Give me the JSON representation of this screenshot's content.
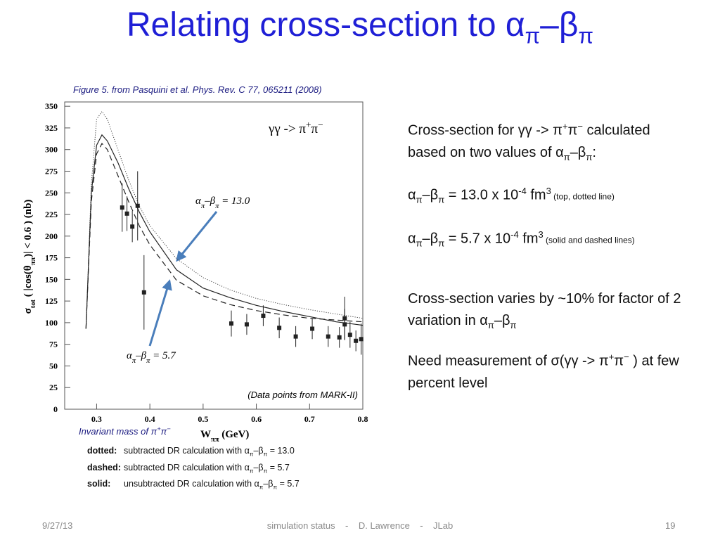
{
  "slide": {
    "title": [
      "Relating cross-section to α",
      "π",
      "–β",
      "π"
    ],
    "figure_caption": "Figure 5. from Pasquini et al. Phys. Rev. C 77, 065211 (2008)",
    "right_text": [
      [
        "Cross-section for γγ -> π",
        "+",
        "π",
        "−",
        " calculated based on two values of α",
        "π",
        "–β",
        "π",
        ":"
      ],
      [
        "α",
        "π",
        "–β",
        "π",
        " = 13.0 x 10",
        "-4",
        " fm",
        "3",
        " (top, dotted line)"
      ],
      [
        "α",
        "π",
        "–β",
        "π",
        " = 5.7 x 10",
        "-4",
        " fm",
        "3",
        " (solid and dashed lines)"
      ],
      [
        "Cross-section varies by ~10% for factor of 2 variation in α",
        "π",
        "–β",
        "π"
      ],
      [
        "Need measurement of σ(γγ -> π",
        "+",
        "π",
        "−",
        " ) at few percent level"
      ]
    ],
    "legend": [
      {
        "key": "dotted:",
        "text": [
          "subtracted DR calculation with α",
          "π",
          "–β",
          "π",
          " = 13.0"
        ]
      },
      {
        "key": "dashed:",
        "text": [
          "subtracted DR calculation with α",
          "π",
          "–β",
          "π",
          " = 5.7"
        ]
      },
      {
        "key": "solid:",
        "text": [
          "unsubtracted DR calculation with α",
          "π",
          "–β",
          "π",
          " = 5.7"
        ]
      }
    ],
    "footer": {
      "date": "9/27/13",
      "center": "simulation status    -    D. Lawrence    -    JLab",
      "page": "19"
    }
  },
  "chart_data": {
    "type": "scatter",
    "x_label": [
      "W",
      "ππ",
      "   (GeV)"
    ],
    "y_label": [
      "σ",
      "tot",
      "  ( |cos(θ",
      "ππ",
      ")| < 0.6 )   (nb)"
    ],
    "x_caption": [
      "Invariant mass of π",
      "+",
      "π",
      "−"
    ],
    "annotations": {
      "process": [
        "γγ -> π",
        "+",
        "π",
        "−"
      ],
      "upper": [
        "α",
        "π",
        "–β",
        "π",
        " = 13.0"
      ],
      "lower": [
        "α",
        "π",
        "–β",
        "π",
        " = 5.7"
      ],
      "source": "(Data points from MARK-II)"
    },
    "xlim": [
      0.24,
      0.8
    ],
    "ylim": [
      0,
      355
    ],
    "xticks": [
      0.3,
      0.4,
      0.5,
      0.6,
      0.7,
      0.8
    ],
    "yticks": [
      0,
      25,
      50,
      75,
      100,
      125,
      150,
      175,
      200,
      225,
      250,
      275,
      300,
      325,
      350
    ],
    "points": {
      "color": "#222222",
      "x": [
        0.348,
        0.357,
        0.367,
        0.377,
        0.389,
        0.553,
        0.582,
        0.613,
        0.643,
        0.674,
        0.705,
        0.735,
        0.756,
        0.766,
        0.766,
        0.776,
        0.787,
        0.797
      ],
      "values": [
        233,
        226,
        211,
        235,
        135,
        99,
        98,
        108,
        94,
        84,
        93,
        84,
        83,
        105,
        98,
        86,
        79,
        81
      ],
      "errors": [
        28,
        20,
        18,
        40,
        43,
        15,
        12,
        12,
        12,
        12,
        12,
        12,
        12,
        25,
        18,
        15,
        12,
        18
      ]
    },
    "series": [
      {
        "style": "dotted",
        "color": "#444444",
        "x": [
          0.28,
          0.29,
          0.3,
          0.31,
          0.32,
          0.34,
          0.36,
          0.38,
          0.4,
          0.45,
          0.5,
          0.55,
          0.6,
          0.65,
          0.7,
          0.75,
          0.8
        ],
        "values": [
          93,
          260,
          335,
          344,
          335,
          300,
          265,
          235,
          212,
          174,
          152,
          138,
          128,
          121,
          115,
          110,
          105
        ]
      },
      {
        "style": "solid",
        "color": "#222222",
        "x": [
          0.28,
          0.29,
          0.3,
          0.31,
          0.32,
          0.34,
          0.36,
          0.38,
          0.4,
          0.45,
          0.5,
          0.55,
          0.6,
          0.65,
          0.7,
          0.75,
          0.8
        ],
        "values": [
          93,
          250,
          305,
          317,
          310,
          285,
          255,
          228,
          205,
          161,
          140,
          129,
          120,
          113,
          107,
          101,
          97
        ]
      },
      {
        "style": "dashed",
        "color": "#222222",
        "x": [
          0.28,
          0.29,
          0.3,
          0.31,
          0.32,
          0.34,
          0.36,
          0.38,
          0.4,
          0.45,
          0.5,
          0.55,
          0.6,
          0.65,
          0.7,
          0.75,
          0.8
        ],
        "values": [
          93,
          240,
          295,
          307,
          300,
          270,
          240,
          212,
          190,
          149,
          131,
          121,
          114,
          109,
          105,
          103,
          101
        ]
      }
    ]
  }
}
